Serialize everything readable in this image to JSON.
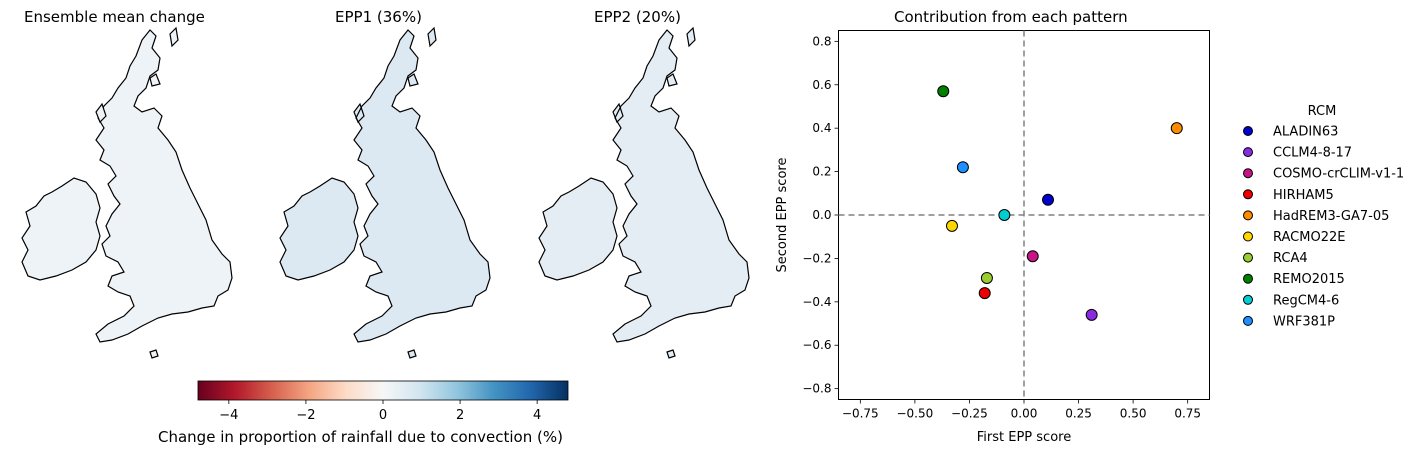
{
  "maps": [
    {
      "title": "Ensemble mean change"
    },
    {
      "title": "EPP1 (36%)"
    },
    {
      "title": "EPP2 (20%)"
    }
  ],
  "colorbar": {
    "label": "Change in proportion of rainfall due to convection (%)",
    "ticks": [
      "−4",
      "−2",
      "0",
      "2",
      "4"
    ],
    "tick_values": [
      -4,
      -2,
      0,
      2,
      4
    ],
    "range": [
      -4.8,
      4.8
    ],
    "colormap": [
      "#67001f",
      "#b2182b",
      "#d6604d",
      "#f4a582",
      "#fddbc7",
      "#f7f7f7",
      "#d1e5f0",
      "#92c5de",
      "#4393c3",
      "#2166ac",
      "#053061"
    ]
  },
  "chart_data": {
    "type": "scatter",
    "title": "Contribution from each pattern",
    "xlabel": "First EPP score",
    "ylabel": "Second EPP score",
    "xlim": [
      -0.85,
      0.85
    ],
    "ylim": [
      -0.85,
      0.85
    ],
    "xticks": [
      -0.75,
      -0.5,
      -0.25,
      0.0,
      0.25,
      0.5,
      0.75
    ],
    "xtick_labels": [
      "−0.75",
      "−0.50",
      "−0.25",
      "0.00",
      "0.25",
      "0.50",
      "0.75"
    ],
    "yticks": [
      -0.8,
      -0.6,
      -0.4,
      -0.2,
      0.0,
      0.2,
      0.4,
      0.6,
      0.8
    ],
    "ytick_labels": [
      "−0.8",
      "−0.6",
      "−0.4",
      "−0.2",
      "0.0",
      "0.2",
      "0.4",
      "0.6",
      "0.8"
    ],
    "reference_lines": {
      "x": 0,
      "y": 0,
      "style": "dashed",
      "color": "#808080"
    },
    "grid": false,
    "legend": {
      "title": "RCM",
      "placement": "outside-right"
    },
    "series": [
      {
        "name": "ALADIN63",
        "color": "#0000cd",
        "x": 0.11,
        "y": 0.07
      },
      {
        "name": "CCLM4-8-17",
        "color": "#8a2be2",
        "x": 0.31,
        "y": -0.46
      },
      {
        "name": "COSMO-crCLIM-v1-1",
        "color": "#c71585",
        "x": 0.04,
        "y": -0.19
      },
      {
        "name": "HIRHAM5",
        "color": "#ee0000",
        "x": -0.18,
        "y": -0.36
      },
      {
        "name": "HadREM3-GA7-05",
        "color": "#ff8c00",
        "x": 0.7,
        "y": 0.4
      },
      {
        "name": "RACMO22E",
        "color": "#ffd700",
        "x": -0.33,
        "y": -0.05
      },
      {
        "name": "RCA4",
        "color": "#9acd32",
        "x": -0.17,
        "y": -0.29
      },
      {
        "name": "REMO2015",
        "color": "#008000",
        "x": -0.37,
        "y": 0.57
      },
      {
        "name": "RegCM4-6",
        "color": "#00ced1",
        "x": -0.09,
        "y": 0.0
      },
      {
        "name": "WRF381P",
        "color": "#1e90ff",
        "x": -0.28,
        "y": 0.22
      }
    ]
  }
}
